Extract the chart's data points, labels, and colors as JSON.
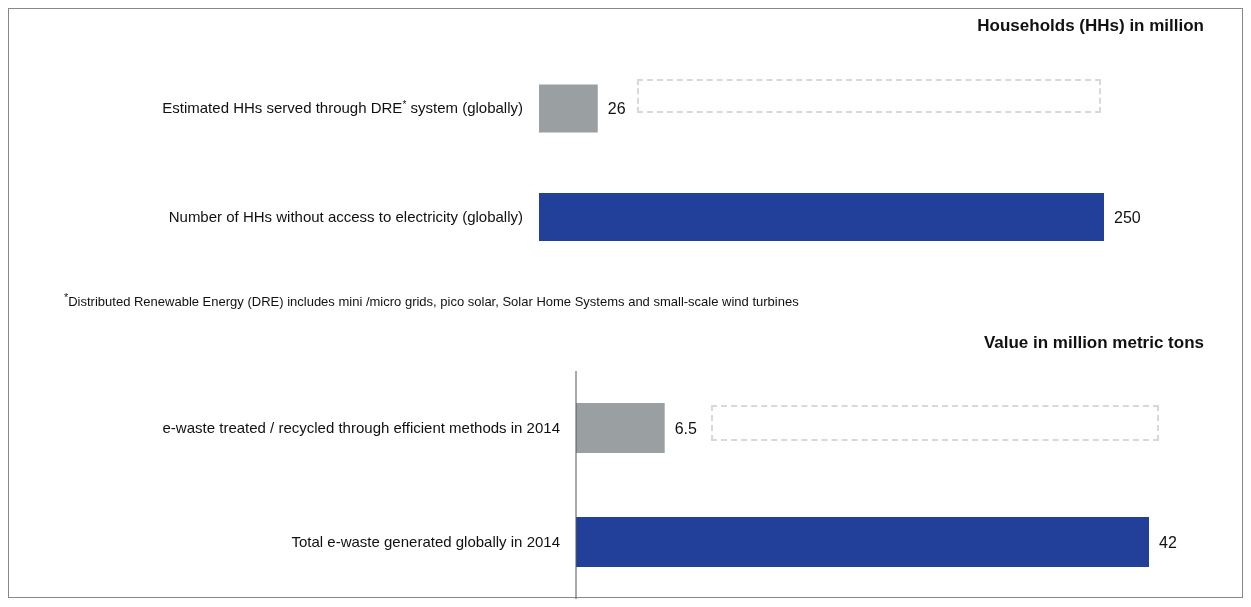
{
  "chart_data": [
    {
      "type": "bar",
      "orientation": "horizontal",
      "title": "Households (HHs) in million",
      "categories": [
        "Estimated HHs served through DRE$^{*}$ system (globally)",
        "Number of HHs without access to electricity (globally)"
      ],
      "values": [
        26,
        250
      ],
      "colors": [
        "#9a9fa2",
        "#22409a"
      ],
      "data_labels": true,
      "grid": false,
      "legend": false,
      "annotations": [
        "$^{*}$Distributed Renewable Energy (DRE) includes mini /micro grids, pico solar, Solar Home Systems and small-scale wind turbines"
      ]
    },
    {
      "type": "bar",
      "orientation": "horizontal",
      "title": "Value in million metric tons",
      "categories": [
        "e-waste treated / recycled through efficient methods in 2014",
        "Total e-waste generated globally in 2014"
      ],
      "values": [
        6.5,
        42
      ],
      "colors": [
        "#9a9fa2",
        "#22409a"
      ],
      "data_labels": true,
      "grid": false,
      "legend": false
    }
  ]
}
